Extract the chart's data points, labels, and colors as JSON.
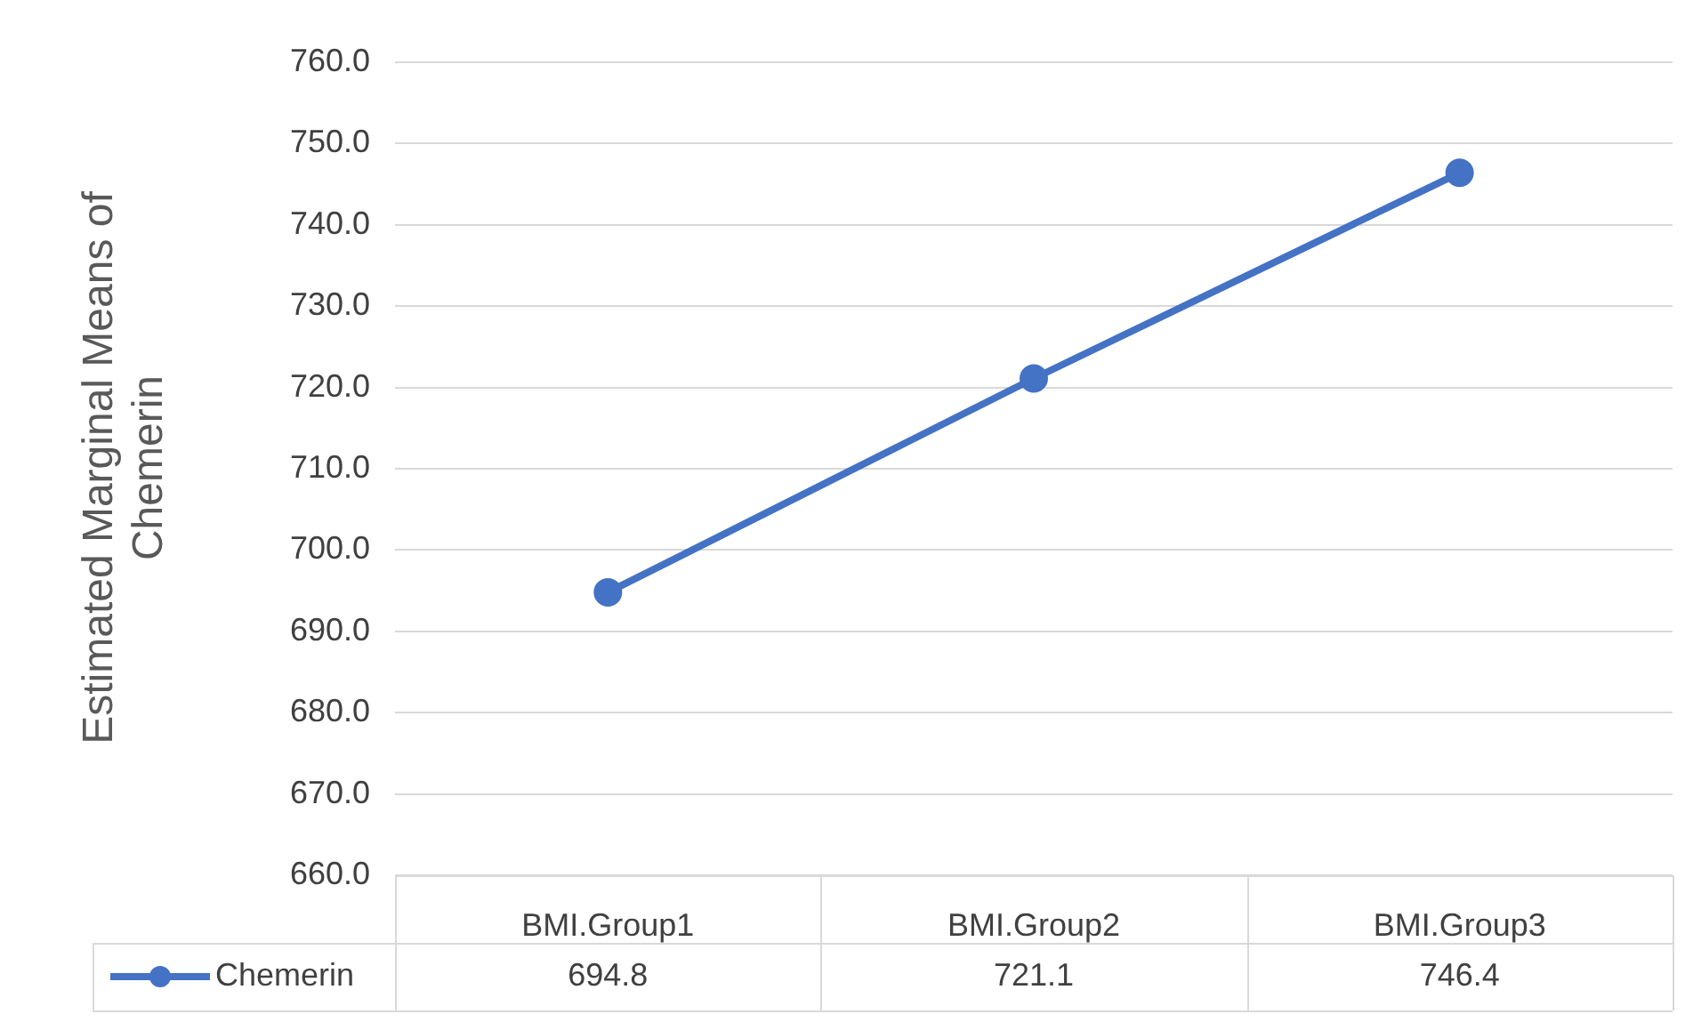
{
  "chart_data": {
    "type": "line",
    "ylabel": "Estimated Marginal Means of Chemerin",
    "categories": [
      "BMI.Group1",
      "BMI.Group2",
      "BMI.Group3"
    ],
    "series": [
      {
        "name": "Chemerin",
        "color": "#4472c4",
        "values": [
          694.8,
          721.1,
          746.4
        ]
      }
    ],
    "ylim": [
      660,
      760
    ],
    "yticks": [
      {
        "value": 660,
        "label": "660.0"
      },
      {
        "value": 670,
        "label": "670.0"
      },
      {
        "value": 680,
        "label": "680.0"
      },
      {
        "value": 690,
        "label": "690.0"
      },
      {
        "value": 700,
        "label": "700.0"
      },
      {
        "value": 710,
        "label": "710.0"
      },
      {
        "value": 720,
        "label": "720.0"
      },
      {
        "value": 730,
        "label": "730.0"
      },
      {
        "value": 740,
        "label": "740.0"
      },
      {
        "value": 750,
        "label": "750.0"
      },
      {
        "value": 760,
        "label": "760.0"
      }
    ],
    "grid": "y",
    "legend": "bottom",
    "marker": "circle",
    "line_style": "solid",
    "data_labels": true
  }
}
